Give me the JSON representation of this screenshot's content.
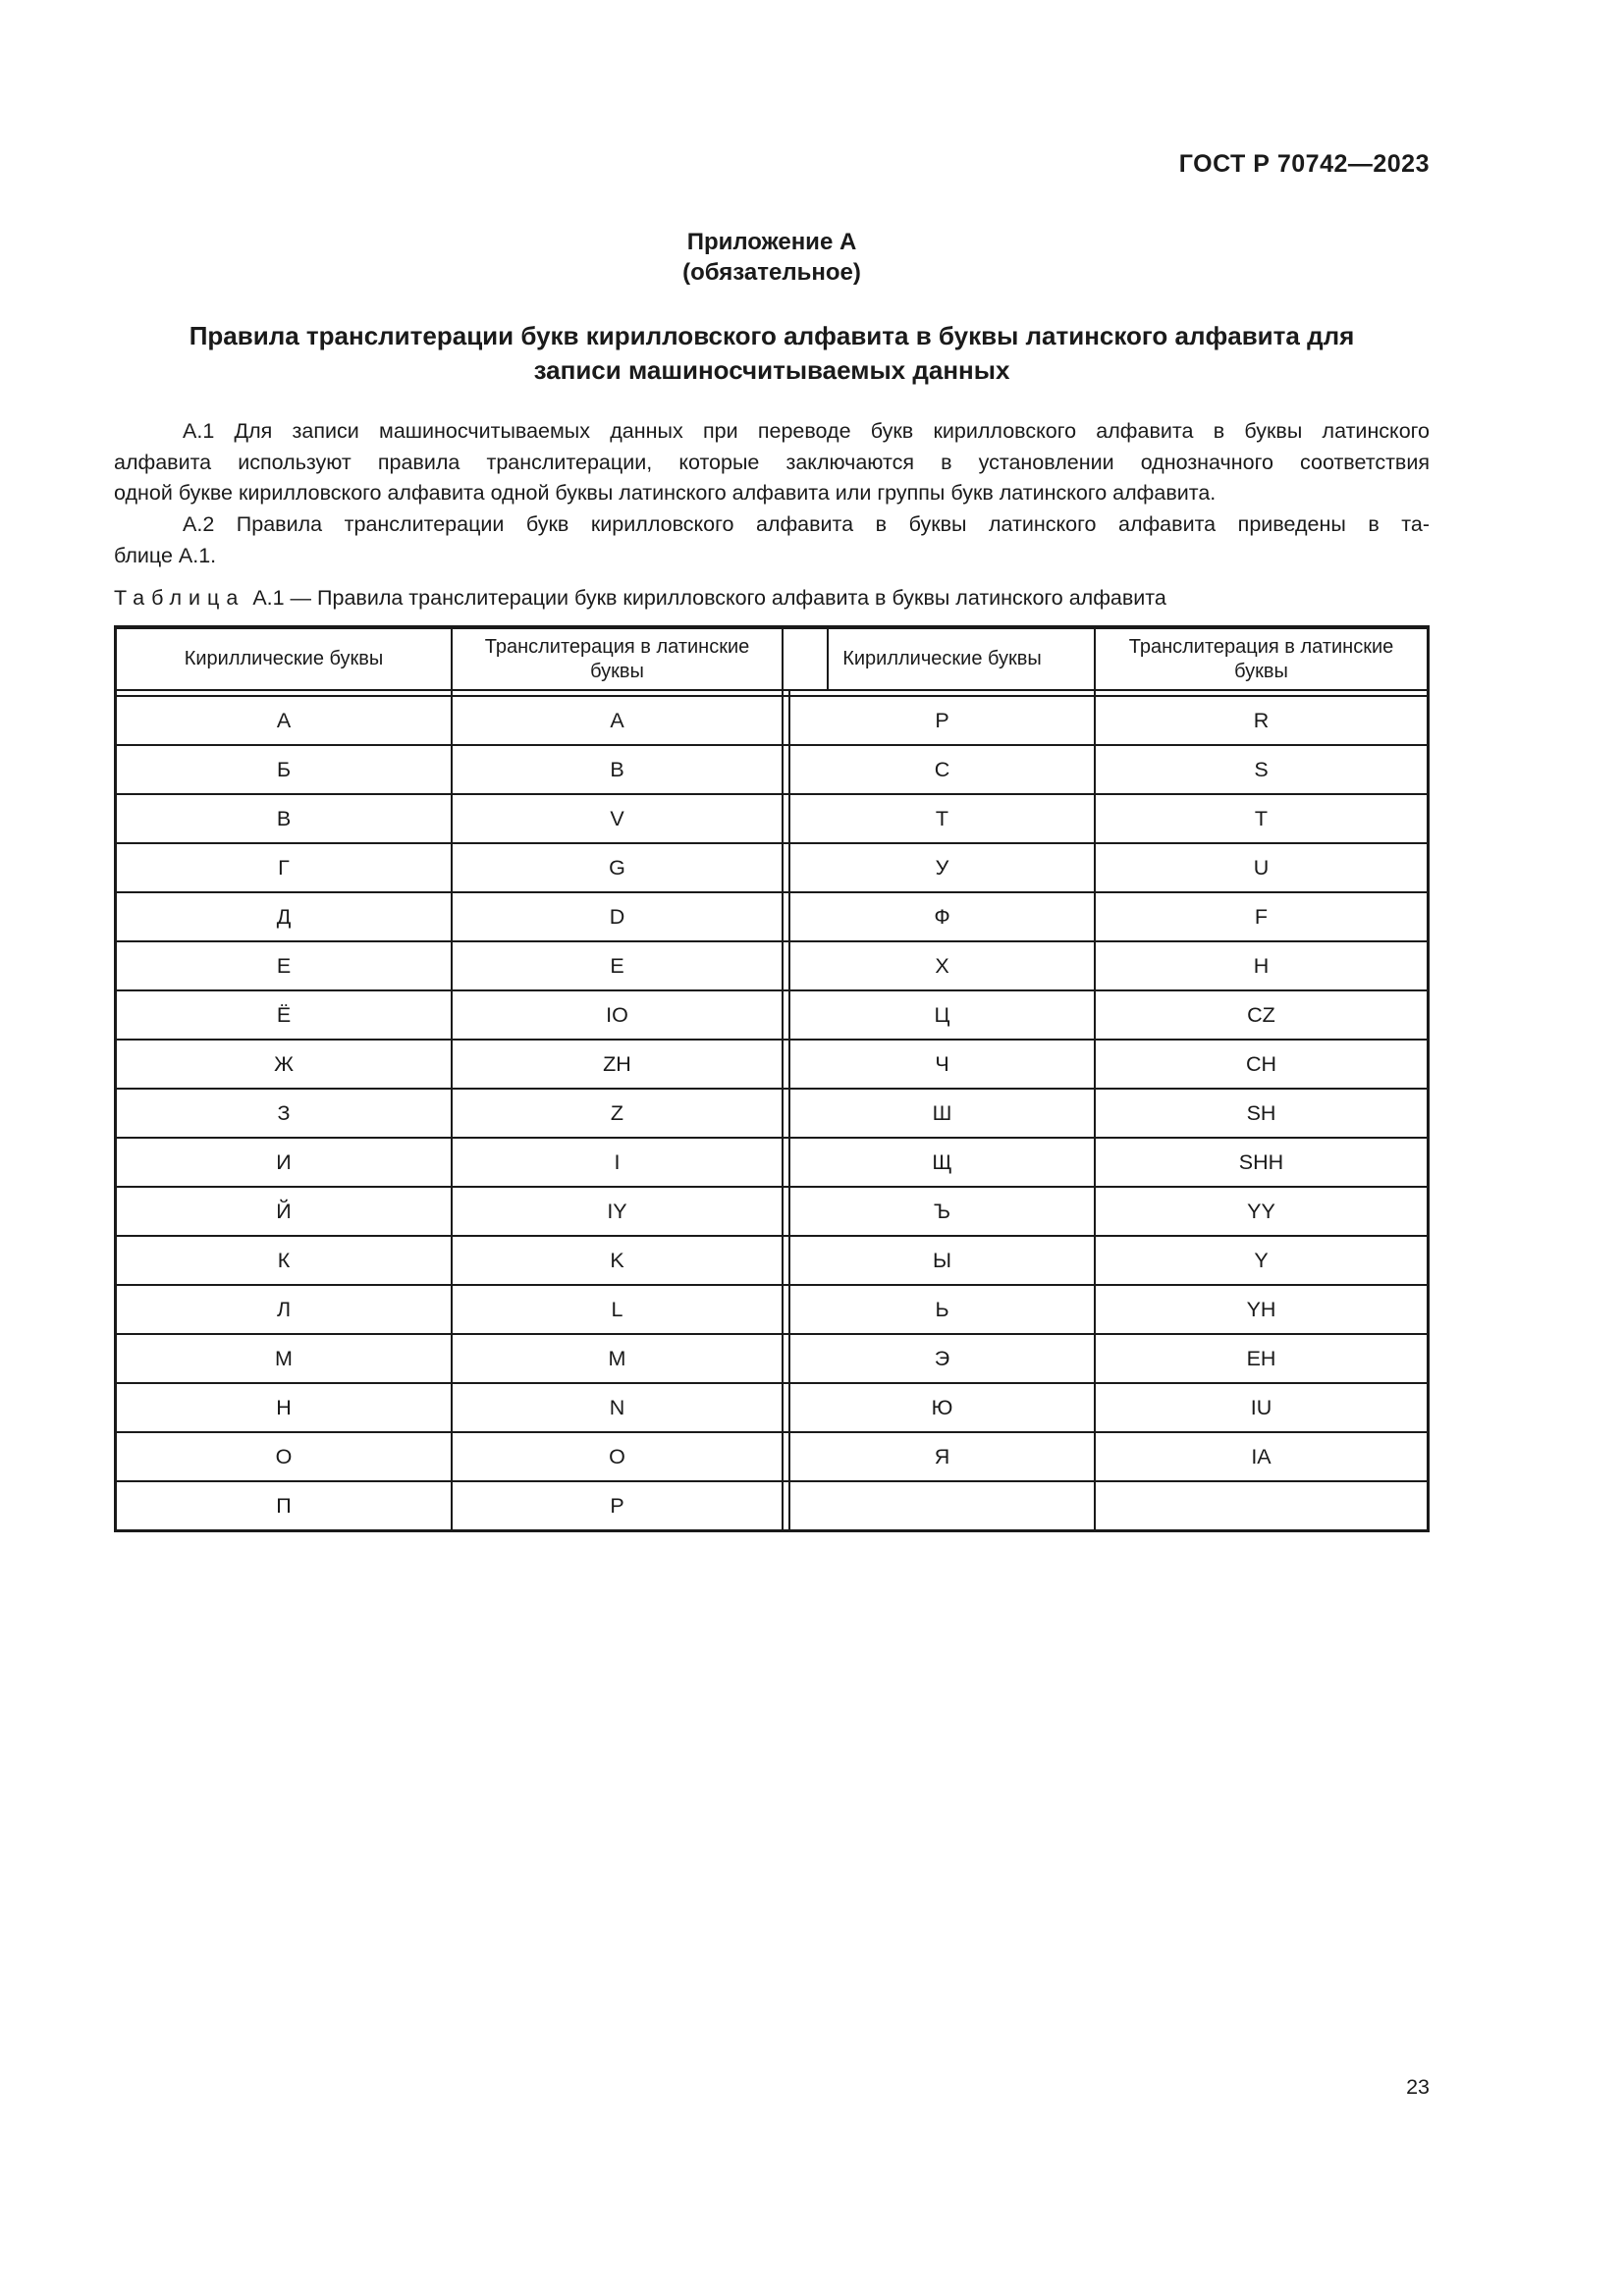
{
  "page": {
    "doc_number": "ГОСТ Р 70742—2023",
    "page_number": "23"
  },
  "appendix": {
    "label": "Приложение А",
    "note": "(обязательное)"
  },
  "title_lines": [
    "Правила транслитерации букв кирилловского алфавита в буквы латинского алфавита для",
    "записи машиносчитываемых данных"
  ],
  "paragraphs": [
    {
      "lines": [
        "А.1 Для записи машиносчитываемых данных при переводе букв кирилловского алфавита в буквы латинского",
        "алфавита используют правила транслитерации, которые заключаются в установлении однозначного соответствия",
        "одной букве кирилловского алфавита одной буквы латинского алфавита или группы букв латинского алфавита."
      ]
    },
    {
      "lines": [
        "А.2 Правила транслитерации букв кирилловского алфавита в буквы латинского алфавита приведены в та-",
        "блице А.1."
      ]
    }
  ],
  "table": {
    "caption_word": "Таблица",
    "caption_rest": "А.1 — Правила транслитерации букв кирилловского алфавита в буквы латинского алфавита",
    "headers": [
      "Кириллические буквы",
      "Транслитерация в латинские буквы",
      "Кириллические буквы",
      "Транслитерация в латинские буквы"
    ],
    "rows": [
      [
        "А",
        "A",
        "Р",
        "R"
      ],
      [
        "Б",
        "B",
        "С",
        "S"
      ],
      [
        "В",
        "V",
        "Т",
        "T"
      ],
      [
        "Г",
        "G",
        "У",
        "U"
      ],
      [
        "Д",
        "D",
        "Ф",
        "F"
      ],
      [
        "Е",
        "E",
        "Х",
        "H"
      ],
      [
        "Ё",
        "IO",
        "Ц",
        "CZ"
      ],
      [
        "Ж",
        "ZH",
        "Ч",
        "CH"
      ],
      [
        "З",
        "Z",
        "Ш",
        "SH"
      ],
      [
        "И",
        "I",
        "Щ",
        "SHH"
      ],
      [
        "Й",
        "IY",
        "Ъ",
        "YY"
      ],
      [
        "К",
        "K",
        "Ы",
        "Y"
      ],
      [
        "Л",
        "L",
        "Ь",
        "YH"
      ],
      [
        "М",
        "M",
        "Э",
        "EH"
      ],
      [
        "Н",
        "N",
        "Ю",
        "IU"
      ],
      [
        "О",
        "O",
        "Я",
        "IA"
      ],
      [
        "П",
        "P",
        "",
        ""
      ]
    ]
  }
}
